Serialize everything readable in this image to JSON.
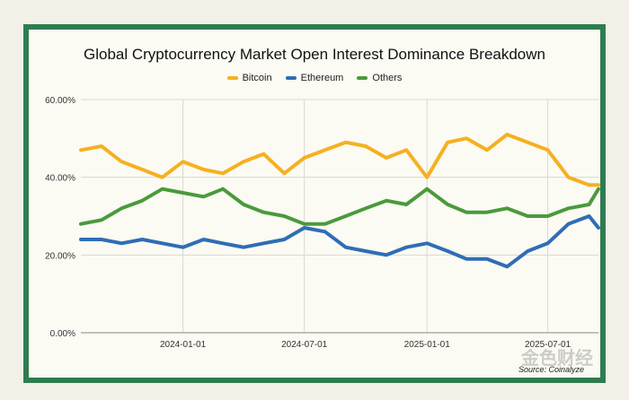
{
  "page": {
    "watermark_text": "金色财经"
  },
  "chart_data": {
    "type": "line",
    "title": "Global Cryptocurrency Market Open Interest Dominance Breakdown",
    "source": "Source: Coinalyze",
    "ylim": [
      0,
      60
    ],
    "yticks": [
      "0.00%",
      "20.00%",
      "40.00%",
      "60.00%"
    ],
    "ytick_values": [
      0,
      20,
      40,
      60
    ],
    "x_range": [
      "2023-08-01",
      "2025-09-15"
    ],
    "x_ticks": [
      "2024-01-01",
      "2024-07-01",
      "2025-01-01",
      "2025-07-01"
    ],
    "grid": true,
    "legend_position": "top-center",
    "series": [
      {
        "name": "Bitcoin",
        "color": "#f5b021",
        "points": [
          [
            "2023-08-01",
            47
          ],
          [
            "2023-09-01",
            48
          ],
          [
            "2023-10-01",
            44
          ],
          [
            "2023-11-01",
            42
          ],
          [
            "2023-12-01",
            40
          ],
          [
            "2024-01-01",
            44
          ],
          [
            "2024-02-01",
            42
          ],
          [
            "2024-03-01",
            41
          ],
          [
            "2024-04-01",
            44
          ],
          [
            "2024-05-01",
            46
          ],
          [
            "2024-06-01",
            41
          ],
          [
            "2024-07-01",
            45
          ],
          [
            "2024-08-01",
            47
          ],
          [
            "2024-09-01",
            49
          ],
          [
            "2024-10-01",
            48
          ],
          [
            "2024-11-01",
            45
          ],
          [
            "2024-12-01",
            47
          ],
          [
            "2025-01-01",
            40
          ],
          [
            "2025-02-01",
            49
          ],
          [
            "2025-03-01",
            50
          ],
          [
            "2025-04-01",
            47
          ],
          [
            "2025-05-01",
            51
          ],
          [
            "2025-06-01",
            49
          ],
          [
            "2025-07-01",
            47
          ],
          [
            "2025-08-01",
            40
          ],
          [
            "2025-09-01",
            38
          ],
          [
            "2025-09-15",
            38
          ]
        ]
      },
      {
        "name": "Ethereum",
        "color": "#2f6db5",
        "points": [
          [
            "2023-08-01",
            24
          ],
          [
            "2023-09-01",
            24
          ],
          [
            "2023-10-01",
            23
          ],
          [
            "2023-11-01",
            24
          ],
          [
            "2023-12-01",
            23
          ],
          [
            "2024-01-01",
            22
          ],
          [
            "2024-02-01",
            24
          ],
          [
            "2024-03-01",
            23
          ],
          [
            "2024-04-01",
            22
          ],
          [
            "2024-05-01",
            23
          ],
          [
            "2024-06-01",
            24
          ],
          [
            "2024-07-01",
            27
          ],
          [
            "2024-08-01",
            26
          ],
          [
            "2024-09-01",
            22
          ],
          [
            "2024-10-01",
            21
          ],
          [
            "2024-11-01",
            20
          ],
          [
            "2024-12-01",
            22
          ],
          [
            "2025-01-01",
            23
          ],
          [
            "2025-02-01",
            21
          ],
          [
            "2025-03-01",
            19
          ],
          [
            "2025-04-01",
            19
          ],
          [
            "2025-05-01",
            17
          ],
          [
            "2025-06-01",
            21
          ],
          [
            "2025-07-01",
            23
          ],
          [
            "2025-08-01",
            28
          ],
          [
            "2025-09-01",
            30
          ],
          [
            "2025-09-15",
            27
          ]
        ]
      },
      {
        "name": "Others",
        "color": "#4a9a3c",
        "points": [
          [
            "2023-08-01",
            28
          ],
          [
            "2023-09-01",
            29
          ],
          [
            "2023-10-01",
            32
          ],
          [
            "2023-11-01",
            34
          ],
          [
            "2023-12-01",
            37
          ],
          [
            "2024-01-01",
            36
          ],
          [
            "2024-02-01",
            35
          ],
          [
            "2024-03-01",
            37
          ],
          [
            "2024-04-01",
            33
          ],
          [
            "2024-05-01",
            31
          ],
          [
            "2024-06-01",
            30
          ],
          [
            "2024-07-01",
            28
          ],
          [
            "2024-08-01",
            28
          ],
          [
            "2024-09-01",
            30
          ],
          [
            "2024-10-01",
            32
          ],
          [
            "2024-11-01",
            34
          ],
          [
            "2024-12-01",
            33
          ],
          [
            "2025-01-01",
            37
          ],
          [
            "2025-02-01",
            33
          ],
          [
            "2025-03-01",
            31
          ],
          [
            "2025-04-01",
            31
          ],
          [
            "2025-05-01",
            32
          ],
          [
            "2025-06-01",
            30
          ],
          [
            "2025-07-01",
            30
          ],
          [
            "2025-08-01",
            32
          ],
          [
            "2025-09-01",
            33
          ],
          [
            "2025-09-15",
            37
          ]
        ]
      }
    ]
  }
}
